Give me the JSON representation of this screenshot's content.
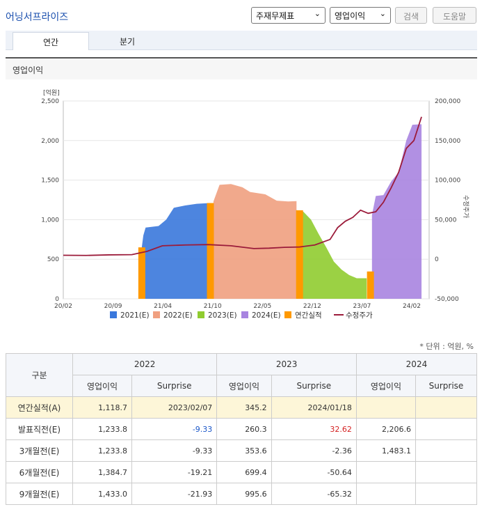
{
  "header": {
    "company": "어닝서프라이즈",
    "select_statement": "주재무제표",
    "select_item": "영업이익",
    "search_label": "검색",
    "help_label": "도움말"
  },
  "tabs": [
    {
      "label": "연간",
      "active": true
    },
    {
      "label": "분기",
      "active": false
    }
  ],
  "section_title": "영업이익",
  "unit_note": "* 단위 : 억원, %",
  "chart_data": {
    "type": "area",
    "left_axis": {
      "label": "[억원]",
      "ticks": [
        "2,500",
        "2,000",
        "1,500",
        "1,000",
        "500",
        "0"
      ],
      "range": [
        0,
        2500
      ]
    },
    "right_axis": {
      "label": "수정주가",
      "ticks": [
        "200,000",
        "150,000",
        "100,000",
        "50,000",
        "0",
        "-50,000"
      ],
      "range": [
        -50000,
        200000
      ]
    },
    "x_ticks": [
      "20/02",
      "20/09",
      "21/04",
      "21/10",
      "22/05",
      "22/12",
      "23/07",
      "24/02"
    ],
    "legend": [
      "2021(E)",
      "2022(E)",
      "2023(E)",
      "2024(E)",
      "연간실적",
      "수정주가"
    ],
    "colors": {
      "e2021": "#3a78dc",
      "e2022": "#f0a080",
      "e2023": "#90cc30",
      "e2024": "#a884e0",
      "actual": "#ff9900",
      "price": "#9b1b3a"
    },
    "series": [
      {
        "name": "2021(E)",
        "values": [
          [
            10.3,
            650
          ],
          [
            10.5,
            800
          ],
          [
            10.8,
            900
          ],
          [
            12.5,
            920
          ],
          [
            13.5,
            1000
          ],
          [
            14.5,
            1150
          ],
          [
            16,
            1180
          ],
          [
            17.5,
            1200
          ],
          [
            19.3,
            1210
          ]
        ]
      },
      {
        "name": "2022(E)",
        "values": [
          [
            19.7,
            1230
          ],
          [
            20.5,
            1440
          ],
          [
            22,
            1450
          ],
          [
            23.5,
            1410
          ],
          [
            24.5,
            1350
          ],
          [
            26.5,
            1320
          ],
          [
            28,
            1240
          ],
          [
            29.5,
            1230
          ],
          [
            30.6,
            1235
          ]
        ]
      },
      {
        "name": "2023(E)",
        "values": [
          [
            30.6,
            1120
          ],
          [
            31.5,
            1100
          ],
          [
            32.5,
            1000
          ],
          [
            33.5,
            820
          ],
          [
            34.5,
            650
          ],
          [
            35.5,
            470
          ],
          [
            36.5,
            370
          ],
          [
            37.5,
            300
          ],
          [
            38.5,
            260
          ],
          [
            39.8,
            260
          ]
        ]
      },
      {
        "name": "2024(E)",
        "values": [
          [
            40.5,
            1060
          ],
          [
            41,
            1300
          ],
          [
            42,
            1310
          ],
          [
            43,
            1480
          ],
          [
            44,
            1600
          ],
          [
            45,
            2000
          ],
          [
            45.8,
            2200
          ],
          [
            47,
            2206.6
          ]
        ]
      },
      {
        "name": "연간실적",
        "values": [
          [
            10.3,
            650
          ],
          [
            19.3,
            1210
          ],
          [
            31,
            1118.7
          ],
          [
            40.3,
            345.2
          ]
        ]
      },
      {
        "name": "수정주가",
        "values": [
          [
            0,
            5000
          ],
          [
            3,
            4800
          ],
          [
            6,
            5500
          ],
          [
            9,
            5800
          ],
          [
            11,
            10000
          ],
          [
            13,
            17000
          ],
          [
            16,
            18000
          ],
          [
            19,
            18500
          ],
          [
            22,
            17000
          ],
          [
            25,
            13500
          ],
          [
            27,
            14000
          ],
          [
            29,
            15000
          ],
          [
            31,
            15500
          ],
          [
            33,
            18000
          ],
          [
            35,
            25000
          ],
          [
            36,
            40000
          ],
          [
            37,
            48000
          ],
          [
            38,
            53000
          ],
          [
            39,
            62000
          ],
          [
            40,
            58000
          ],
          [
            41,
            60000
          ],
          [
            42,
            72000
          ],
          [
            43,
            90000
          ],
          [
            44,
            110000
          ],
          [
            45,
            140000
          ],
          [
            46,
            150000
          ],
          [
            47,
            180000
          ]
        ]
      }
    ]
  },
  "table": {
    "header_label": "구분",
    "years": [
      "2022",
      "2023",
      "2024"
    ],
    "sub_headers": [
      "영업이익",
      "Surprise",
      "영업이익",
      "Surprise",
      "영업이익",
      "Surprise"
    ],
    "rows": [
      {
        "label": "연간실적(A)",
        "cells": [
          "1,118.7",
          "2023/02/07",
          "345.2",
          "2024/01/18",
          "",
          ""
        ],
        "highlight": true
      },
      {
        "label": "발표직전(E)",
        "cells": [
          "1,233.8",
          "-9.33",
          "260.3",
          "32.62",
          "2,206.6",
          ""
        ]
      },
      {
        "label": "3개월전(E)",
        "cells": [
          "1,233.8",
          "-9.33",
          "353.6",
          "-2.36",
          "1,483.1",
          ""
        ]
      },
      {
        "label": "6개월전(E)",
        "cells": [
          "1,384.7",
          "-19.21",
          "699.4",
          "-50.64",
          "",
          ""
        ]
      },
      {
        "label": "9개월전(E)",
        "cells": [
          "1,433.0",
          "-21.93",
          "995.6",
          "-65.32",
          "",
          ""
        ]
      }
    ]
  }
}
